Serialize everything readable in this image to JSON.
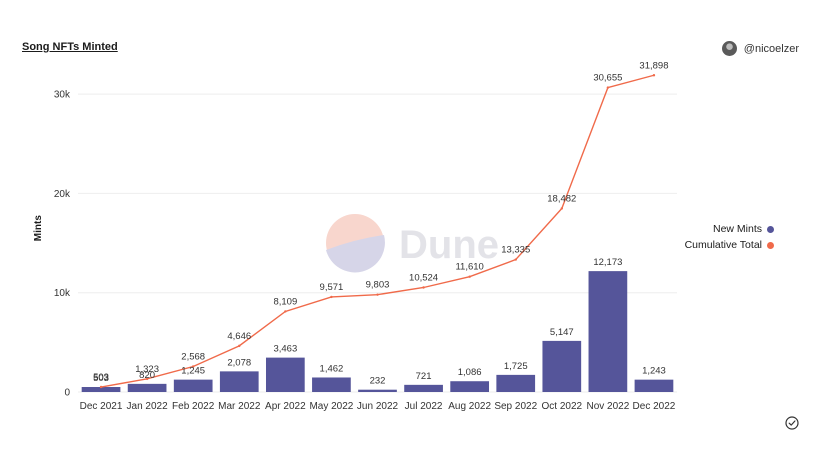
{
  "header": {
    "title": "Song NFTs Minted",
    "author": "@nicoelzer"
  },
  "watermark": {
    "text": "Dune"
  },
  "colors": {
    "bar": "#55559a",
    "line": "#f06a4a",
    "grid": "#eeeeee",
    "text": "#1b1b1b"
  },
  "chart_data": {
    "type": "bar",
    "ylabel": "Mints",
    "xlabel": "",
    "ylim": [
      0,
      33000
    ],
    "yticks": [
      0,
      10000,
      20000,
      30000
    ],
    "ytick_labels": [
      "0",
      "10k",
      "20k",
      "30k"
    ],
    "grid": true,
    "legend_position": "right",
    "categories": [
      "Dec 2021",
      "Jan 2022",
      "Feb 2022",
      "Mar 2022",
      "Apr 2022",
      "May 2022",
      "Jun 2022",
      "Jul 2022",
      "Aug 2022",
      "Sep 2022",
      "Oct 2022",
      "Nov 2022",
      "Dec 2022"
    ],
    "series": [
      {
        "name": "New Mints",
        "type": "bar",
        "color": "#55559a",
        "values": [
          503,
          820,
          1245,
          2078,
          3463,
          1462,
          232,
          721,
          1086,
          1725,
          5147,
          12173,
          1243
        ],
        "labels": [
          "503",
          "820",
          "1,245",
          "2,078",
          "3,463",
          "1,462",
          "232",
          "721",
          "1,086",
          "1,725",
          "5,147",
          "12,173",
          "1,243"
        ]
      },
      {
        "name": "Cumulative Total",
        "type": "line",
        "color": "#f06a4a",
        "values": [
          503,
          1323,
          2568,
          4646,
          8109,
          9571,
          9803,
          10524,
          11610,
          13335,
          18482,
          30655,
          31898
        ],
        "labels": [
          "503",
          "1,323",
          "2,568",
          "4,646",
          "8,109",
          "9,571",
          "9,803",
          "10,524",
          "11,610",
          "13,335",
          "18,482",
          "30,655",
          "31,898"
        ]
      }
    ]
  }
}
